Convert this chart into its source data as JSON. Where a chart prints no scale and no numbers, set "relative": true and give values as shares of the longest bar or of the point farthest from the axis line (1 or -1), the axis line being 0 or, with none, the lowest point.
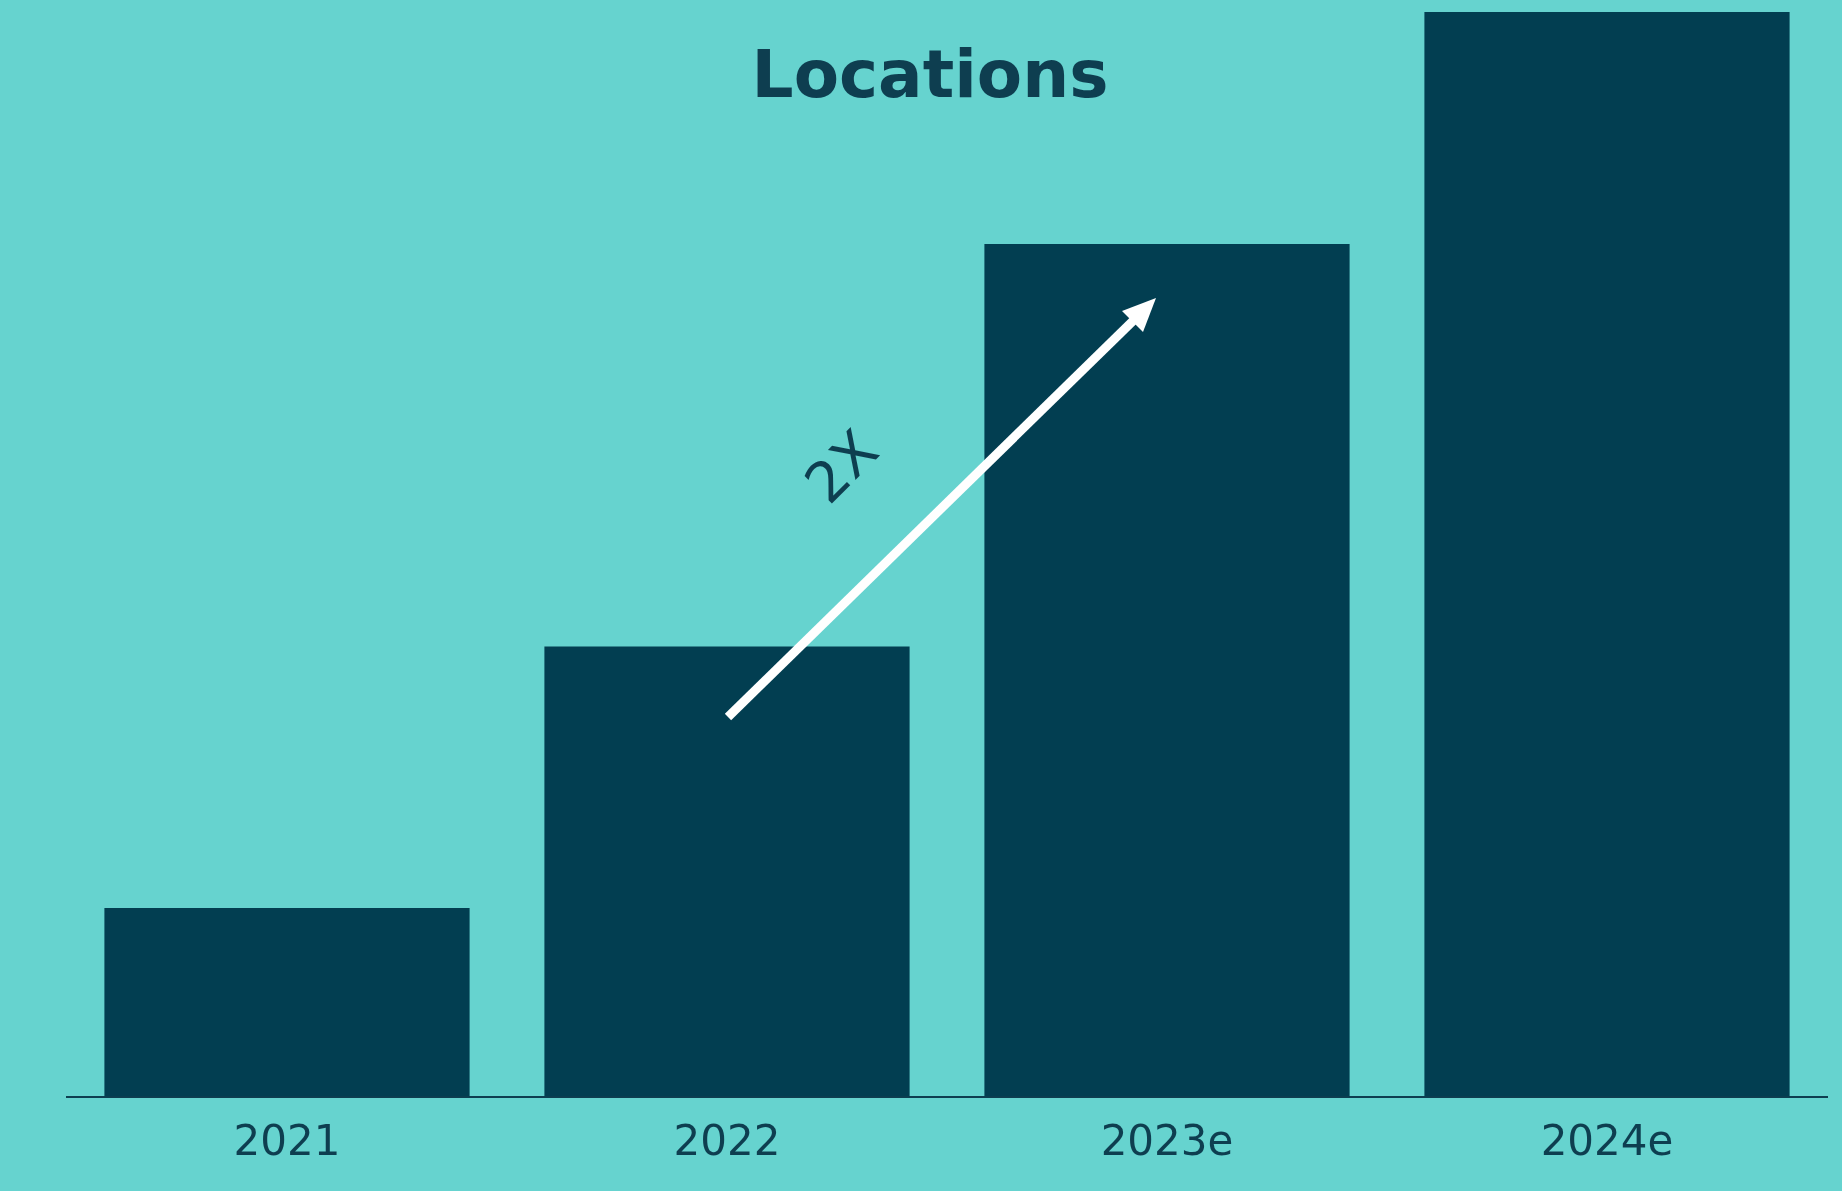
{
  "chart_data": {
    "type": "bar",
    "title": "Locations",
    "categories": [
      "2021",
      "2022",
      "2023e",
      "2024e"
    ],
    "values": [
      0.174,
      0.415,
      0.786,
      1
    ],
    "color": "#023e51",
    "relative": true,
    "grid": false,
    "legend": false,
    "annotations": [
      "2X"
    ]
  }
}
